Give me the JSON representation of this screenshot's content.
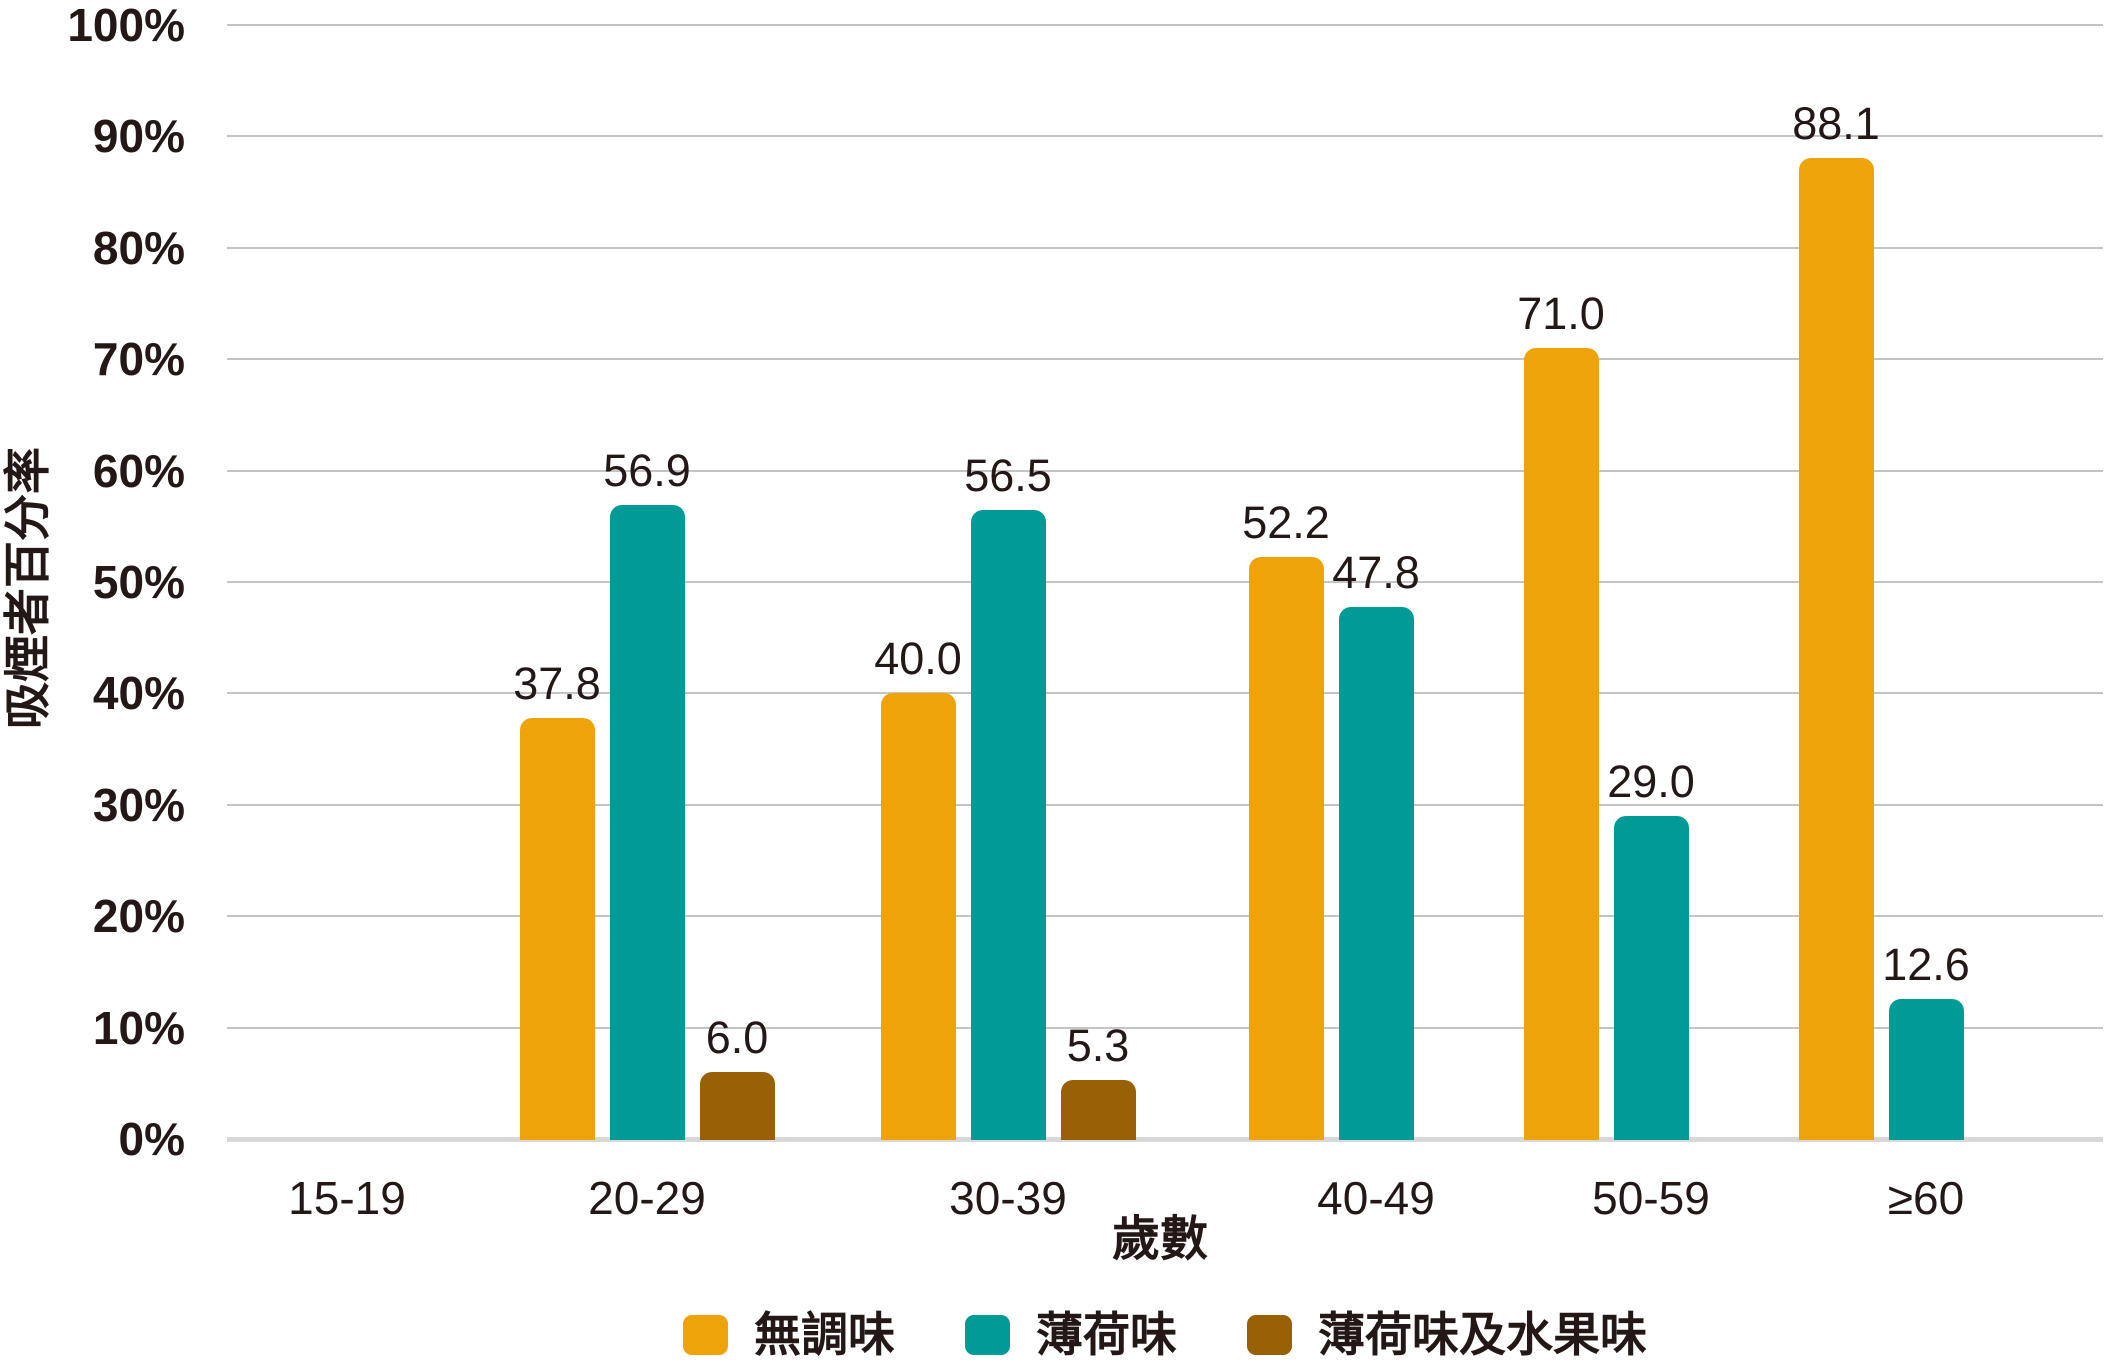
{
  "chart_data": {
    "type": "bar",
    "title": "",
    "xlabel": "歲數",
    "ylabel": "吸煙者百分率",
    "categories": [
      "15-19",
      "20-29",
      "30-39",
      "40-49",
      "50-59",
      "≥60"
    ],
    "series": [
      {
        "key": "unflavoured",
        "name": "無調味",
        "color": "#EFA30A",
        "values": [
          null,
          37.8,
          40.0,
          52.2,
          71.0,
          88.1
        ]
      },
      {
        "key": "menthol",
        "name": "薄荷味",
        "color": "#009B96",
        "values": [
          null,
          56.9,
          56.5,
          47.8,
          29.0,
          12.6
        ]
      },
      {
        "key": "menthol-fruit",
        "name": "薄荷味及水果味",
        "color": "#9A6005",
        "values": [
          null,
          6.0,
          5.3,
          null,
          null,
          null
        ]
      }
    ],
    "ylim": [
      0,
      100
    ],
    "y_ticks": [
      "0%",
      "10%",
      "20%",
      "30%",
      "40%",
      "50%",
      "60%",
      "70%",
      "80%",
      "90%",
      "100%"
    ],
    "grid": true,
    "legend_position": "bottom",
    "value_label_decimals": 1
  },
  "colors": {
    "text": "#231815",
    "gridline": "#C4C4C4",
    "baseline": "#D8D8D8",
    "background": "#FFFFFF"
  }
}
